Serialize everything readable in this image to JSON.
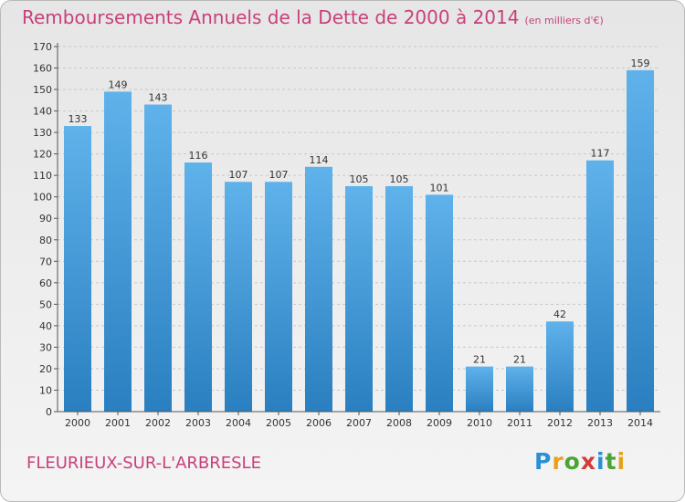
{
  "header": {
    "title": "Remboursements Annuels de la Dette de 2000 à 2014",
    "unit": "(en milliers d'€)"
  },
  "footer": {
    "city": "FLEURIEUX-SUR-L'ARBRESLE",
    "logo_letters": [
      "P",
      "r",
      "o",
      "x",
      "i",
      "t",
      "i"
    ],
    "logo_colors": [
      "#2a8fd6",
      "#e8a21a",
      "#4aa535",
      "#d43c3c",
      "#2a8fd6",
      "#4aa535",
      "#e8a21a"
    ]
  },
  "chart_data": {
    "type": "bar",
    "title": "Remboursements Annuels de la Dette de 2000 à 2014",
    "xlabel": "",
    "ylabel": "",
    "ylim": [
      0,
      170
    ],
    "yticks": [
      0,
      10,
      20,
      30,
      40,
      50,
      60,
      70,
      80,
      90,
      100,
      110,
      120,
      130,
      140,
      150,
      160,
      170
    ],
    "grid": true,
    "categories": [
      "2000",
      "2001",
      "2002",
      "2003",
      "2004",
      "2005",
      "2006",
      "2007",
      "2008",
      "2009",
      "2010",
      "2011",
      "2012",
      "2013",
      "2014"
    ],
    "values": [
      133,
      149,
      143,
      116,
      107,
      107,
      114,
      105,
      105,
      101,
      21,
      21,
      42,
      117,
      159
    ],
    "colors": {
      "bar_top": "#5fb2ea",
      "bar_bottom": "#2a7fc0",
      "grid": "#c8c8c8",
      "title": "#c8407a"
    }
  }
}
